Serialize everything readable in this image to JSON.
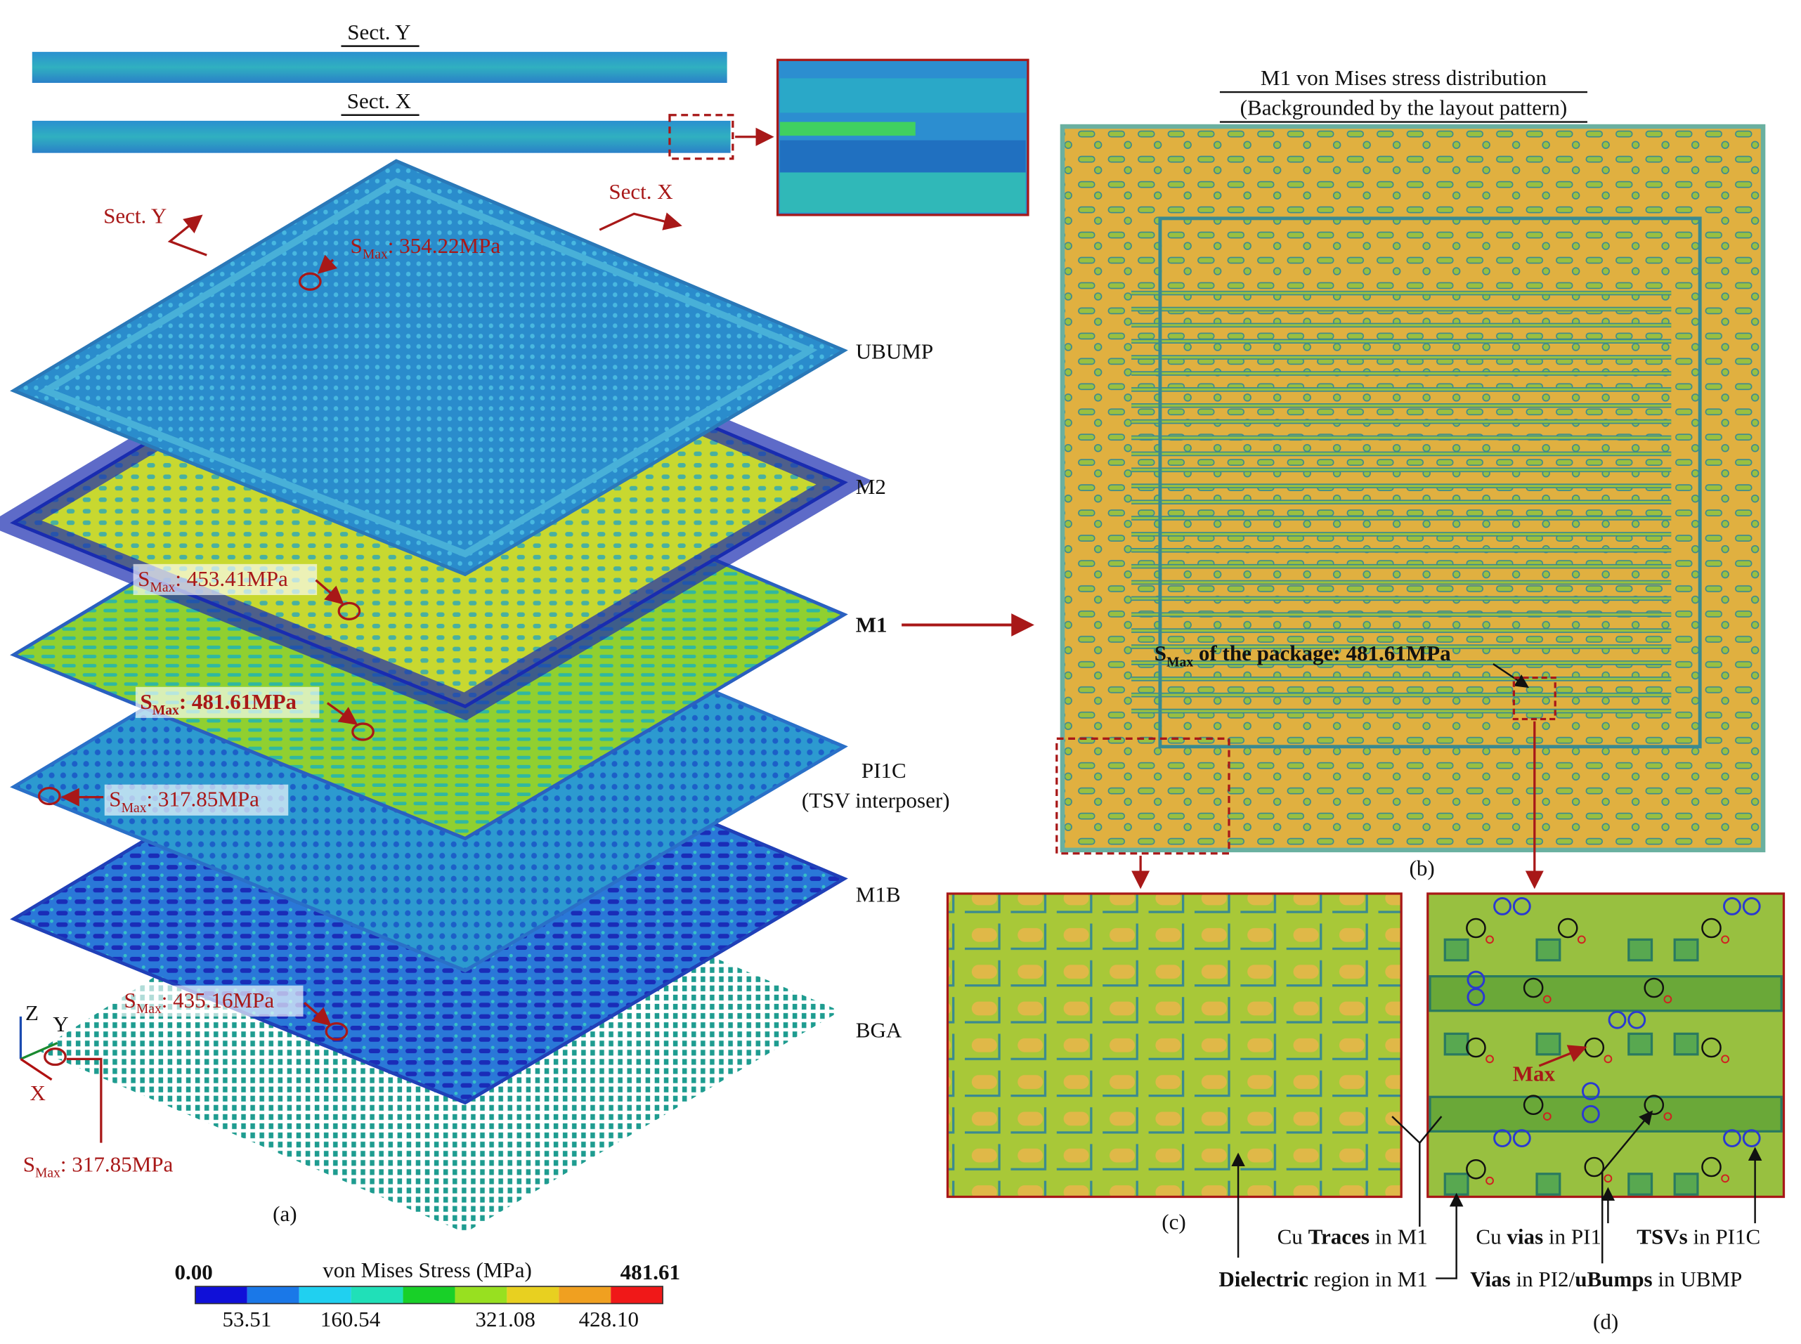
{
  "sections": {
    "y_title": "Sect. Y",
    "x_title": "Sect. X",
    "y_arrow": "Sect. Y",
    "x_arrow": "Sect. X"
  },
  "layers": [
    "UBUMP",
    "M2",
    "M1",
    "PI1C",
    "(TSV interposer)",
    "M1B",
    "BGA"
  ],
  "annotations": [
    {
      "s": "S",
      "sub": "Max",
      "text": ": 354.22MPa"
    },
    {
      "s": "S",
      "sub": "Max",
      "text": ": 453.41MPa"
    },
    {
      "s": "S",
      "sub": "Max",
      "text": ": 481.61MPa"
    },
    {
      "s": "S",
      "sub": "Max",
      "text": ": 317.85MPa"
    },
    {
      "s": "S",
      "sub": "Max",
      "text": ": 435.16MPa"
    },
    {
      "s": "S",
      "sub": "Max",
      "text": ": 317.85MPa"
    }
  ],
  "axes": [
    "Z",
    "Y",
    "X"
  ],
  "panel_labels": [
    "(a)",
    "(b)",
    "(c)",
    "(d)"
  ],
  "colorbar": {
    "title": "von Mises Stress (MPa)",
    "min": "0.00",
    "max": "481.61",
    "ticks": [
      "53.51",
      "160.54",
      "321.08",
      "428.10"
    ]
  },
  "panel_b": {
    "title": "M1 von Mises stress distribution",
    "subtitle": "(Backgrounded by the layout pattern)",
    "annotation": {
      "s": "S",
      "sub": "Max",
      "text": " of the package: 481.61MPa"
    }
  },
  "panel_d": {
    "max": "Max"
  },
  "callouts": [
    [
      {
        "text": "Cu "
      },
      {
        "text": "Traces",
        "bold": true
      },
      {
        "text": " in M1"
      }
    ],
    [
      {
        "text": "Dielectric",
        "bold": true
      },
      {
        "text": " region in M1"
      }
    ],
    [
      {
        "text": "Cu "
      },
      {
        "text": "vias",
        "bold": true
      },
      {
        "text": " in PI1"
      }
    ],
    [
      {
        "text": "TSVs",
        "bold": true
      },
      {
        "text": " in PI1C"
      }
    ],
    [
      {
        "text": "Vias",
        "bold": true
      },
      {
        "text": " in PI2/"
      },
      {
        "text": "uBumps",
        "bold": true
      },
      {
        "text": " in UBMP"
      }
    ]
  ]
}
